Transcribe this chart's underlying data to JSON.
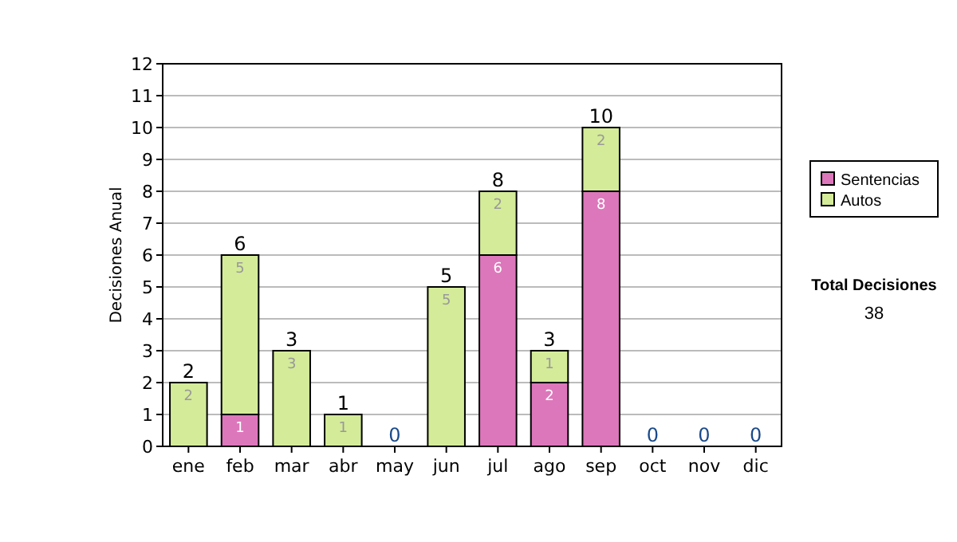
{
  "chart_data": {
    "type": "bar",
    "stacked": true,
    "ylabel": "Decisiones Anual",
    "categories": [
      "ene",
      "feb",
      "mar",
      "abr",
      "may",
      "jun",
      "jul",
      "ago",
      "sep",
      "oct",
      "nov",
      "dic"
    ],
    "series": [
      {
        "name": "Sentencias",
        "color": "#dd77bb",
        "values": [
          0,
          1,
          0,
          0,
          0,
          0,
          6,
          2,
          8,
          0,
          0,
          0
        ],
        "value_labels": [
          null,
          "1",
          null,
          null,
          null,
          null,
          "6",
          "2",
          "8",
          null,
          null,
          null
        ]
      },
      {
        "name": "Autos",
        "color": "#d4eb99",
        "values": [
          2,
          5,
          3,
          1,
          0,
          5,
          2,
          1,
          2,
          0,
          0,
          0
        ],
        "value_labels": [
          "2",
          "5",
          "3",
          "1",
          null,
          "5",
          "2",
          "1",
          "2",
          null,
          null,
          null
        ]
      }
    ],
    "totals": [
      "2",
      "6",
      "3",
      "1",
      "0",
      "5",
      "8",
      "3",
      "10",
      "0",
      "0",
      "0"
    ],
    "ylim": [
      0,
      12
    ],
    "yticks": [
      0,
      1,
      2,
      3,
      4,
      5,
      6,
      7,
      8,
      9,
      10,
      11,
      12
    ],
    "grid": "y",
    "legend": "right",
    "annotations": [
      "Total Decisiones",
      "38"
    ]
  }
}
